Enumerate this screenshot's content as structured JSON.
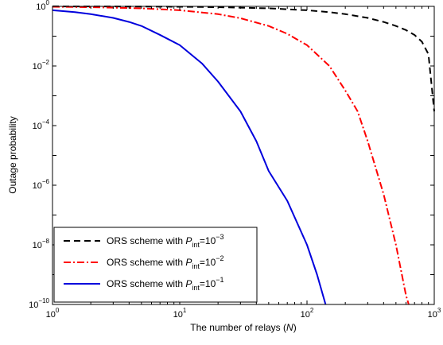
{
  "chart_data": {
    "type": "line",
    "xscale": "log",
    "yscale": "log",
    "xlim": [
      1,
      1000
    ],
    "ylim": [
      1e-10,
      1
    ],
    "grid": false,
    "legend_position": "bottom-left",
    "xlabel": {
      "text": "The number of relays (",
      "var": "N",
      "close": ")"
    },
    "ylabel": "Outage probability",
    "x_ticks": [
      {
        "value": 1,
        "base": "10",
        "exp": "0"
      },
      {
        "value": 10,
        "base": "10",
        "exp": "1"
      },
      {
        "value": 100,
        "base": "10",
        "exp": "2"
      },
      {
        "value": 1000,
        "base": "10",
        "exp": "3"
      }
    ],
    "y_ticks": [
      {
        "value": 1e-10,
        "base": "10",
        "exp": "−10"
      },
      {
        "value": 1e-08,
        "base": "10",
        "exp": "−8"
      },
      {
        "value": 1e-06,
        "base": "10",
        "exp": "−6"
      },
      {
        "value": 0.0001,
        "base": "10",
        "exp": "−4"
      },
      {
        "value": 0.01,
        "base": "10",
        "exp": "−2"
      },
      {
        "value": 1,
        "base": "10",
        "exp": "0"
      }
    ],
    "series": [
      {
        "legend": {
          "prefix": "ORS scheme with ",
          "var": "P",
          "sub": "int",
          "eq": "=10",
          "exp": "−3"
        },
        "color": "#000000",
        "dash": "8,5",
        "points": [
          [
            1,
            0.997
          ],
          [
            2,
            0.994
          ],
          [
            5,
            0.985
          ],
          [
            10,
            0.97
          ],
          [
            20,
            0.94
          ],
          [
            50,
            0.86
          ],
          [
            100,
            0.74
          ],
          [
            150,
            0.64
          ],
          [
            200,
            0.55
          ],
          [
            300,
            0.41
          ],
          [
            400,
            0.3
          ],
          [
            500,
            0.22
          ],
          [
            600,
            0.16
          ],
          [
            700,
            0.11
          ],
          [
            800,
            0.065
          ],
          [
            900,
            0.025
          ],
          [
            1000,
            0.0003
          ]
        ]
      },
      {
        "legend": {
          "prefix": "ORS scheme with ",
          "var": "P",
          "sub": "int",
          "eq": "=10",
          "exp": "−2"
        },
        "color": "#ff0000",
        "dash": "9,3,2,3",
        "points": [
          [
            1,
            0.97
          ],
          [
            2,
            0.94
          ],
          [
            5,
            0.86
          ],
          [
            10,
            0.74
          ],
          [
            20,
            0.55
          ],
          [
            30,
            0.4
          ],
          [
            50,
            0.22
          ],
          [
            70,
            0.12
          ],
          [
            100,
            0.05
          ],
          [
            150,
            0.01
          ],
          [
            200,
            0.0015
          ],
          [
            250,
            0.0003
          ],
          [
            300,
            3e-05
          ],
          [
            400,
            5e-07
          ],
          [
            500,
            1e-08
          ],
          [
            600,
            2e-10
          ],
          [
            630,
            1e-10
          ]
        ]
      },
      {
        "legend": {
          "prefix": "ORS scheme with ",
          "var": "P",
          "sub": "int",
          "eq": "=10",
          "exp": "−1"
        },
        "color": "#0000dd",
        "dash": "",
        "points": [
          [
            1,
            0.74
          ],
          [
            1.5,
            0.64
          ],
          [
            2,
            0.55
          ],
          [
            3,
            0.41
          ],
          [
            4,
            0.3
          ],
          [
            5,
            0.22
          ],
          [
            7,
            0.11
          ],
          [
            10,
            0.05
          ],
          [
            15,
            0.012
          ],
          [
            20,
            0.003
          ],
          [
            30,
            0.0003
          ],
          [
            40,
            3e-05
          ],
          [
            50,
            3e-06
          ],
          [
            70,
            3e-07
          ],
          [
            100,
            1e-08
          ],
          [
            120,
            1e-09
          ],
          [
            140,
            1e-10
          ]
        ]
      }
    ]
  }
}
